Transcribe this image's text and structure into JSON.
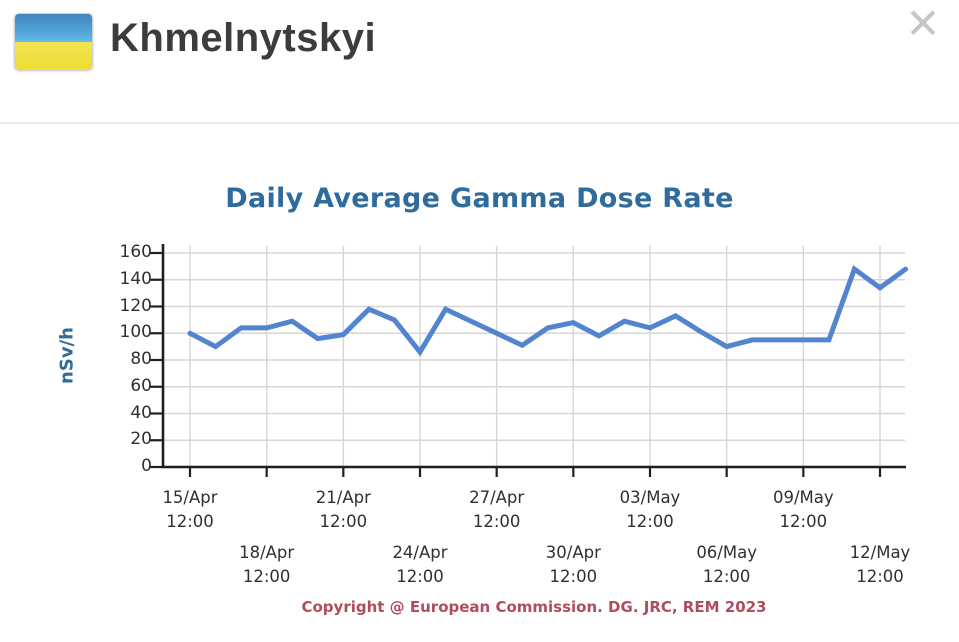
{
  "header": {
    "title": "Khmelnytskyi",
    "close_glyph": "✕",
    "flag_icon": "ukraine-flag",
    "flag_colors": {
      "blue": "#4f9ed4",
      "yellow": "#f0df3f"
    }
  },
  "chart_data": {
    "type": "line",
    "title": "Daily Average Gamma Dose Rate",
    "ylabel": "nSv/h",
    "xlabel": "",
    "ylim": [
      0,
      160
    ],
    "y_ticks": [
      0,
      20,
      40,
      60,
      80,
      100,
      120,
      140,
      160
    ],
    "grid": true,
    "legend_position": "none",
    "line_color": "#5285cd",
    "x": [
      "15/Apr",
      "16/Apr",
      "17/Apr",
      "18/Apr",
      "19/Apr",
      "20/Apr",
      "21/Apr",
      "22/Apr",
      "23/Apr",
      "24/Apr",
      "25/Apr",
      "26/Apr",
      "27/Apr",
      "28/Apr",
      "29/Apr",
      "30/Apr",
      "01/May",
      "02/May",
      "03/May",
      "04/May",
      "05/May",
      "06/May",
      "07/May",
      "08/May",
      "09/May",
      "10/May",
      "11/May",
      "12/May",
      "13/May"
    ],
    "series": [
      {
        "name": "Daily average gamma dose rate (nSv/h)",
        "values": [
          100,
          90,
          104,
          104,
          109,
          96,
          99,
          118,
          110,
          86,
          118,
          109,
          100,
          91,
          104,
          108,
          98,
          109,
          104,
          113,
          101,
          90,
          95,
          95,
          95,
          95,
          148,
          134,
          148
        ]
      }
    ],
    "x_ticks": [
      {
        "label": "15/Apr",
        "time": "12:00",
        "index": 0,
        "row": 1
      },
      {
        "label": "18/Apr",
        "time": "12:00",
        "index": 3,
        "row": 2
      },
      {
        "label": "21/Apr",
        "time": "12:00",
        "index": 6,
        "row": 1
      },
      {
        "label": "24/Apr",
        "time": "12:00",
        "index": 9,
        "row": 2
      },
      {
        "label": "27/Apr",
        "time": "12:00",
        "index": 12,
        "row": 1
      },
      {
        "label": "30/Apr",
        "time": "12:00",
        "index": 15,
        "row": 2
      },
      {
        "label": "03/May",
        "time": "12:00",
        "index": 18,
        "row": 1
      },
      {
        "label": "06/May",
        "time": "12:00",
        "index": 21,
        "row": 2
      },
      {
        "label": "09/May",
        "time": "12:00",
        "index": 24,
        "row": 1
      },
      {
        "label": "12/May",
        "time": "12:00",
        "index": 27,
        "row": 2
      }
    ],
    "copyright": "Copyright @ European Commission. DG. JRC, REM 2023",
    "colors": {
      "grid": "#d6d6d6",
      "axis": "#1f1f1f",
      "title": "#2f6b9d",
      "tick_text": "#332e33",
      "copyright": "#b04c5e"
    }
  }
}
